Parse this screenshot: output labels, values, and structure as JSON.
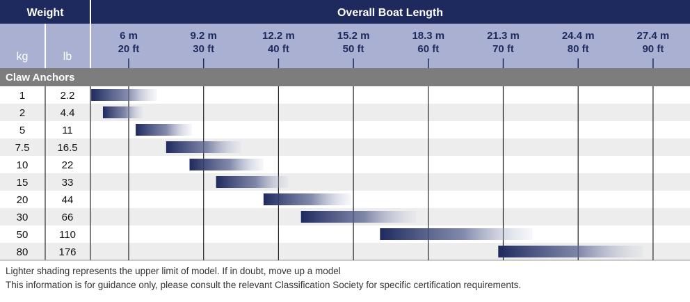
{
  "header": {
    "weight": "Weight",
    "length": "Overall Boat Length",
    "kg": "kg",
    "lb": "lb"
  },
  "section_label": "Claw Anchors",
  "footnotes": [
    "Lighter shading represents the upper limit of model. If in doubt, move up a model",
    "This information is for guidance only, please consult the relevant Classification Society for specific certification requirements."
  ],
  "colors": {
    "header": "#1e2a5e",
    "subheader": "#a9b0d1",
    "section": "#7d7d7d",
    "bar": "#1e2a5e",
    "row_alt": "#ededed"
  },
  "chart_data": {
    "type": "bar",
    "orientation": "horizontal-range",
    "title": "",
    "xlabel": "Overall Boat Length",
    "x_ticks": [
      {
        "m": "6 m",
        "ft": "20 ft",
        "value_m": 6
      },
      {
        "m": "9.2 m",
        "ft": "30 ft",
        "value_m": 9.2
      },
      {
        "m": "12.2 m",
        "ft": "40 ft",
        "value_m": 12.2
      },
      {
        "m": "15.2 m",
        "ft": "50 ft",
        "value_m": 15.2
      },
      {
        "m": "18.3 m",
        "ft": "60 ft",
        "value_m": 18.3
      },
      {
        "m": "21.3 m",
        "ft": "70 ft",
        "value_m": 21.3
      },
      {
        "m": "24.4 m",
        "ft": "80 ft",
        "value_m": 24.4
      },
      {
        "m": "27.4 m",
        "ft": "90 ft",
        "value_m": 27.4
      }
    ],
    "xlim_m": [
      4.4,
      29.0
    ],
    "grid": true,
    "rows": [
      {
        "kg": "1",
        "lb": "2.2",
        "start_m": 4.4,
        "end_m": 7.2
      },
      {
        "kg": "2",
        "lb": "4.4",
        "start_m": 4.9,
        "end_m": 6.6
      },
      {
        "kg": "5",
        "lb": "11",
        "start_m": 6.3,
        "end_m": 8.7
      },
      {
        "kg": "7.5",
        "lb": "16.5",
        "start_m": 7.6,
        "end_m": 10.7
      },
      {
        "kg": "10",
        "lb": "22",
        "start_m": 8.6,
        "end_m": 11.6
      },
      {
        "kg": "15",
        "lb": "33",
        "start_m": 9.7,
        "end_m": 12.6
      },
      {
        "kg": "20",
        "lb": "44",
        "start_m": 11.6,
        "end_m": 15.1
      },
      {
        "kg": "30",
        "lb": "66",
        "start_m": 13.1,
        "end_m": 17.8
      },
      {
        "kg": "50",
        "lb": "110",
        "start_m": 16.3,
        "end_m": 22.5
      },
      {
        "kg": "80",
        "lb": "176",
        "start_m": 21.1,
        "end_m": 27.0
      }
    ]
  }
}
